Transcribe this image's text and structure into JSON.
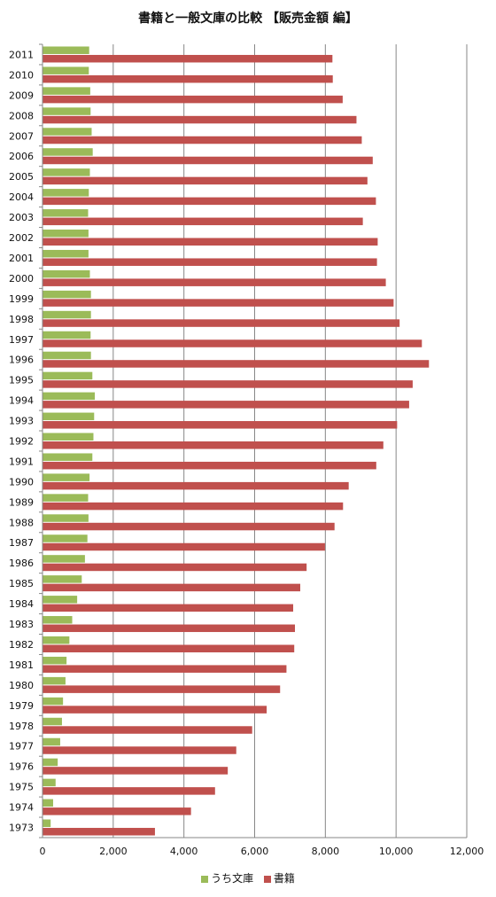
{
  "title": "書籍と一般文庫の比較 【販売金額 編】",
  "legend": [
    {
      "name": "うち文庫",
      "color": "#9bbb59"
    },
    {
      "name": "書籍",
      "color": "#c0504d"
    }
  ],
  "chart_data": {
    "type": "bar",
    "orientation": "horizontal",
    "title": "書籍と一般文庫の比較 【販売金額 編】",
    "xlabel": "",
    "ylabel": "",
    "xlim": [
      0,
      12000
    ],
    "x_ticks": [
      "0",
      "2,000",
      "4,000",
      "6,000",
      "8,000",
      "10,000",
      "12,000"
    ],
    "grid": true,
    "legend_position": "bottom",
    "categories": [
      "2011",
      "2010",
      "2009",
      "2008",
      "2007",
      "2006",
      "2005",
      "2004",
      "2003",
      "2002",
      "2001",
      "2000",
      "1999",
      "1998",
      "1997",
      "1996",
      "1995",
      "1994",
      "1993",
      "1992",
      "1991",
      "1990",
      "1989",
      "1988",
      "1987",
      "1986",
      "1985",
      "1984",
      "1983",
      "1982",
      "1981",
      "1980",
      "1979",
      "1978",
      "1977",
      "1976",
      "1975",
      "1974",
      "1973"
    ],
    "series": [
      {
        "name": "うち文庫",
        "color": "#9bbb59",
        "values": [
          1320,
          1310,
          1350,
          1360,
          1390,
          1420,
          1340,
          1310,
          1290,
          1300,
          1300,
          1340,
          1370,
          1370,
          1360,
          1370,
          1410,
          1480,
          1460,
          1440,
          1410,
          1330,
          1290,
          1300,
          1270,
          1200,
          1110,
          980,
          840,
          760,
          680,
          650,
          580,
          550,
          500,
          430,
          370,
          300,
          230
        ]
      },
      {
        "name": "書籍",
        "color": "#c0504d",
        "values": [
          8200,
          8210,
          8490,
          8880,
          9030,
          9340,
          9190,
          9430,
          9060,
          9480,
          9460,
          9710,
          9930,
          10100,
          10730,
          10930,
          10470,
          10370,
          10030,
          9640,
          9440,
          8660,
          8500,
          8260,
          7990,
          7470,
          7290,
          7090,
          7140,
          7120,
          6900,
          6720,
          6340,
          5930,
          5480,
          5240,
          4880,
          4200,
          3180
        ]
      }
    ]
  }
}
